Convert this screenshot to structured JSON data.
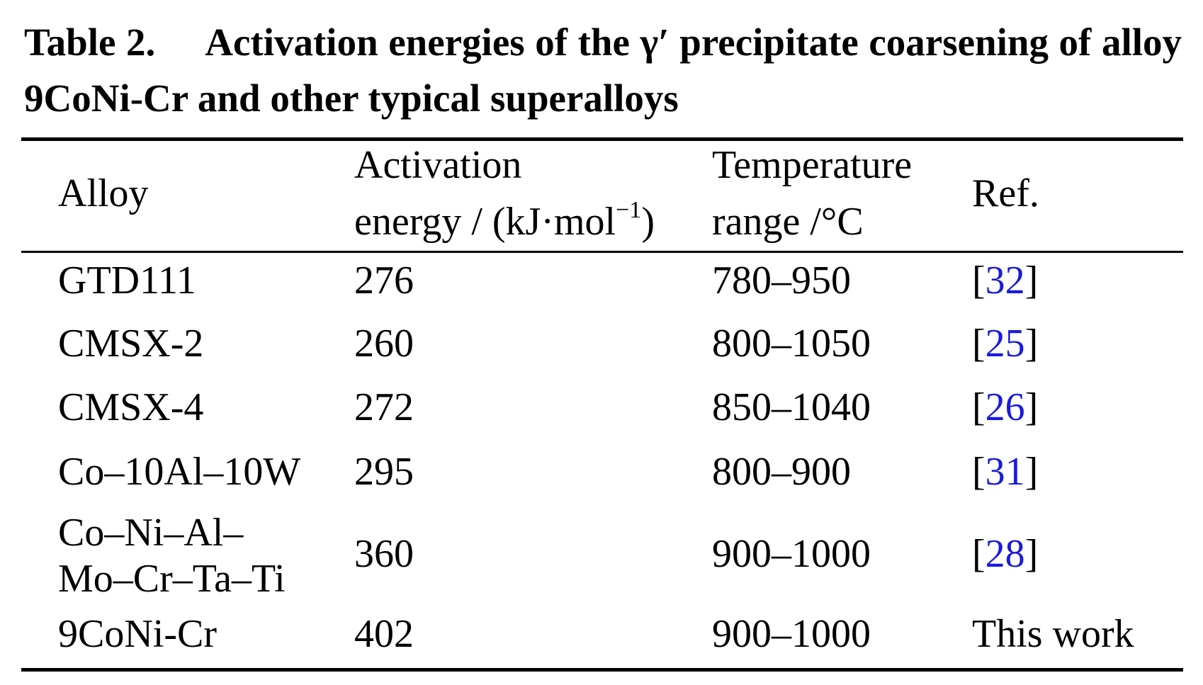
{
  "caption": {
    "label": "Table 2.",
    "text": "Activation energies of the γ′ precipitate coarsening of alloy 9CoNi-Cr and other typical superalloys"
  },
  "headers": {
    "alloy": "Alloy",
    "energy_line1": "Activation",
    "energy_line2_pre": "energy / (kJ·mol",
    "energy_line2_sup": "−1",
    "energy_line2_post": ")",
    "temp_line1": "Temperature",
    "temp_line2": "range /°C",
    "ref": "Ref."
  },
  "rows": [
    {
      "alloy": "GTD111",
      "alloy_line2": "",
      "energy": "276",
      "temp": "780–950",
      "ref_open": "[",
      "ref_num": "32",
      "ref_close": "]",
      "ref_text": ""
    },
    {
      "alloy": "CMSX-2",
      "alloy_line2": "",
      "energy": "260",
      "temp": "800–1050",
      "ref_open": "[",
      "ref_num": "25",
      "ref_close": "]",
      "ref_text": ""
    },
    {
      "alloy": "CMSX-4",
      "alloy_line2": "",
      "energy": "272",
      "temp": "850–1040",
      "ref_open": "[",
      "ref_num": "26",
      "ref_close": "]",
      "ref_text": ""
    },
    {
      "alloy": "Co–10Al–10W",
      "alloy_line2": "",
      "energy": "295",
      "temp": "800–900",
      "ref_open": "[",
      "ref_num": "31",
      "ref_close": "]",
      "ref_text": ""
    },
    {
      "alloy": "Co–Ni–Al–",
      "alloy_line2": "Mo–Cr–Ta–Ti",
      "energy": "360",
      "temp": "900–1000",
      "ref_open": "[",
      "ref_num": "28",
      "ref_close": "]",
      "ref_text": ""
    },
    {
      "alloy": "9CoNi-Cr",
      "alloy_line2": "",
      "energy": "402",
      "temp": "900–1000",
      "ref_open": "",
      "ref_num": "",
      "ref_close": "",
      "ref_text": "This work"
    }
  ],
  "colors": {
    "text": "#000000",
    "reference_link": "#1a1adf",
    "rules": "#000000"
  }
}
